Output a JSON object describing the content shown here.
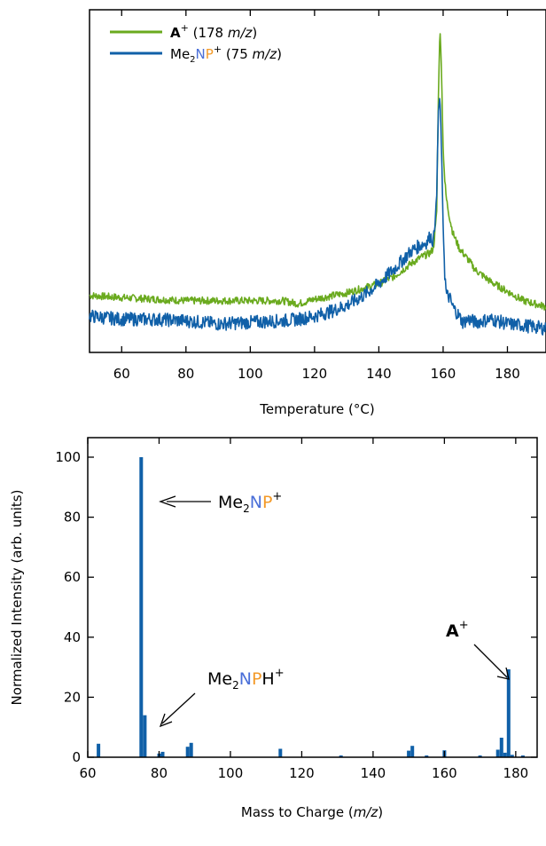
{
  "colors": {
    "green": "#6aaa1e",
    "blue": "#1060a8",
    "nitrogen": "#4a6fd8",
    "phosphorus": "#f39a28"
  },
  "chart_data": [
    {
      "type": "line",
      "xlabel": "Temperature (°C)",
      "ylabel": "",
      "xlim": [
        50,
        192
      ],
      "ylim": [
        0,
        1
      ],
      "xticks": [
        60,
        80,
        100,
        120,
        140,
        160,
        180
      ],
      "legend_placement": "top-left",
      "legend": [
        {
          "key": "A",
          "pre": "",
          "n": "",
          "p": "",
          "post": "",
          "sup": "+",
          "suffix": " (178 ",
          "mz": "m/z",
          "close": ")"
        },
        {
          "key": "Me",
          "pre": "",
          "sub": "2",
          "n": "N",
          "p": "P",
          "sup": "+",
          "suffix": " (75 ",
          "mz": "m/z",
          "close": ")"
        }
      ],
      "series": [
        {
          "name": "A+ (178 m/z)",
          "color": "#6aaa1e",
          "x": [
            50,
            60,
            70,
            80,
            90,
            100,
            110,
            115,
            120,
            125,
            130,
            135,
            140,
            145,
            150,
            153,
            155,
            156,
            157,
            158,
            158.5,
            159,
            159.5,
            160,
            160.5,
            161,
            162,
            163,
            165,
            168,
            170,
            175,
            180,
            185,
            192
          ],
          "y": [
            0.127,
            0.12,
            0.115,
            0.11,
            0.11,
            0.11,
            0.11,
            0.1,
            0.115,
            0.125,
            0.135,
            0.15,
            0.165,
            0.19,
            0.23,
            0.25,
            0.26,
            0.265,
            0.28,
            0.4,
            0.75,
            1.0,
            0.85,
            0.6,
            0.5,
            0.44,
            0.38,
            0.33,
            0.28,
            0.24,
            0.21,
            0.17,
            0.14,
            0.11,
            0.09
          ]
        },
        {
          "name": "Me2NP+ (75 m/z)",
          "color": "#1060a8",
          "x": [
            50,
            60,
            70,
            80,
            90,
            100,
            110,
            115,
            120,
            125,
            130,
            135,
            140,
            145,
            150,
            153,
            155,
            156,
            157,
            158,
            158.5,
            159,
            159.5,
            160,
            160.5,
            161,
            162,
            163,
            165,
            166,
            168,
            170,
            175,
            180,
            185,
            192
          ],
          "y": [
            0.06,
            0.05,
            0.05,
            0.045,
            0.035,
            0.04,
            0.045,
            0.05,
            0.06,
            0.075,
            0.095,
            0.125,
            0.165,
            0.215,
            0.27,
            0.29,
            0.3,
            0.32,
            0.3,
            0.45,
            0.72,
            0.77,
            0.6,
            0.35,
            0.2,
            0.13,
            0.12,
            0.09,
            0.06,
            0.04,
            0.05,
            0.04,
            0.05,
            0.035,
            0.03,
            0.02
          ]
        }
      ]
    },
    {
      "type": "bar",
      "xlabel_pre": "Mass to Charge (",
      "xlabel_mz": "m/z",
      "xlabel_post": ")",
      "ylabel": "Normalized Intensity (arb. units)",
      "xlim": [
        60,
        186
      ],
      "ylim": [
        0,
        105
      ],
      "xticks": [
        60,
        80,
        100,
        120,
        140,
        160,
        180
      ],
      "yticks": [
        0,
        20,
        40,
        60,
        80,
        100
      ],
      "color": "#1060a8",
      "x": [
        63,
        75,
        76,
        80,
        81,
        88,
        89,
        114,
        131,
        150,
        151,
        155,
        160,
        170,
        175,
        176,
        177,
        178,
        179,
        182
      ],
      "values": [
        4.5,
        100,
        14,
        1.2,
        1.8,
        3.5,
        4.8,
        2.8,
        0.6,
        2.2,
        3.8,
        0.6,
        2.3,
        0.6,
        2.5,
        6.5,
        1.5,
        29.3,
        0.8,
        0.6
      ],
      "annotations": [
        {
          "id": "me2np",
          "pre": "Me",
          "sub": "2",
          "n": "N",
          "p": "P",
          "sup": "+",
          "tail": ""
        },
        {
          "id": "me2nph",
          "pre": "Me",
          "sub": "2",
          "n": "N",
          "p": "P",
          "sup": "+",
          "tail": "H"
        },
        {
          "id": "a",
          "bold": "A",
          "sup": "+"
        }
      ]
    }
  ]
}
